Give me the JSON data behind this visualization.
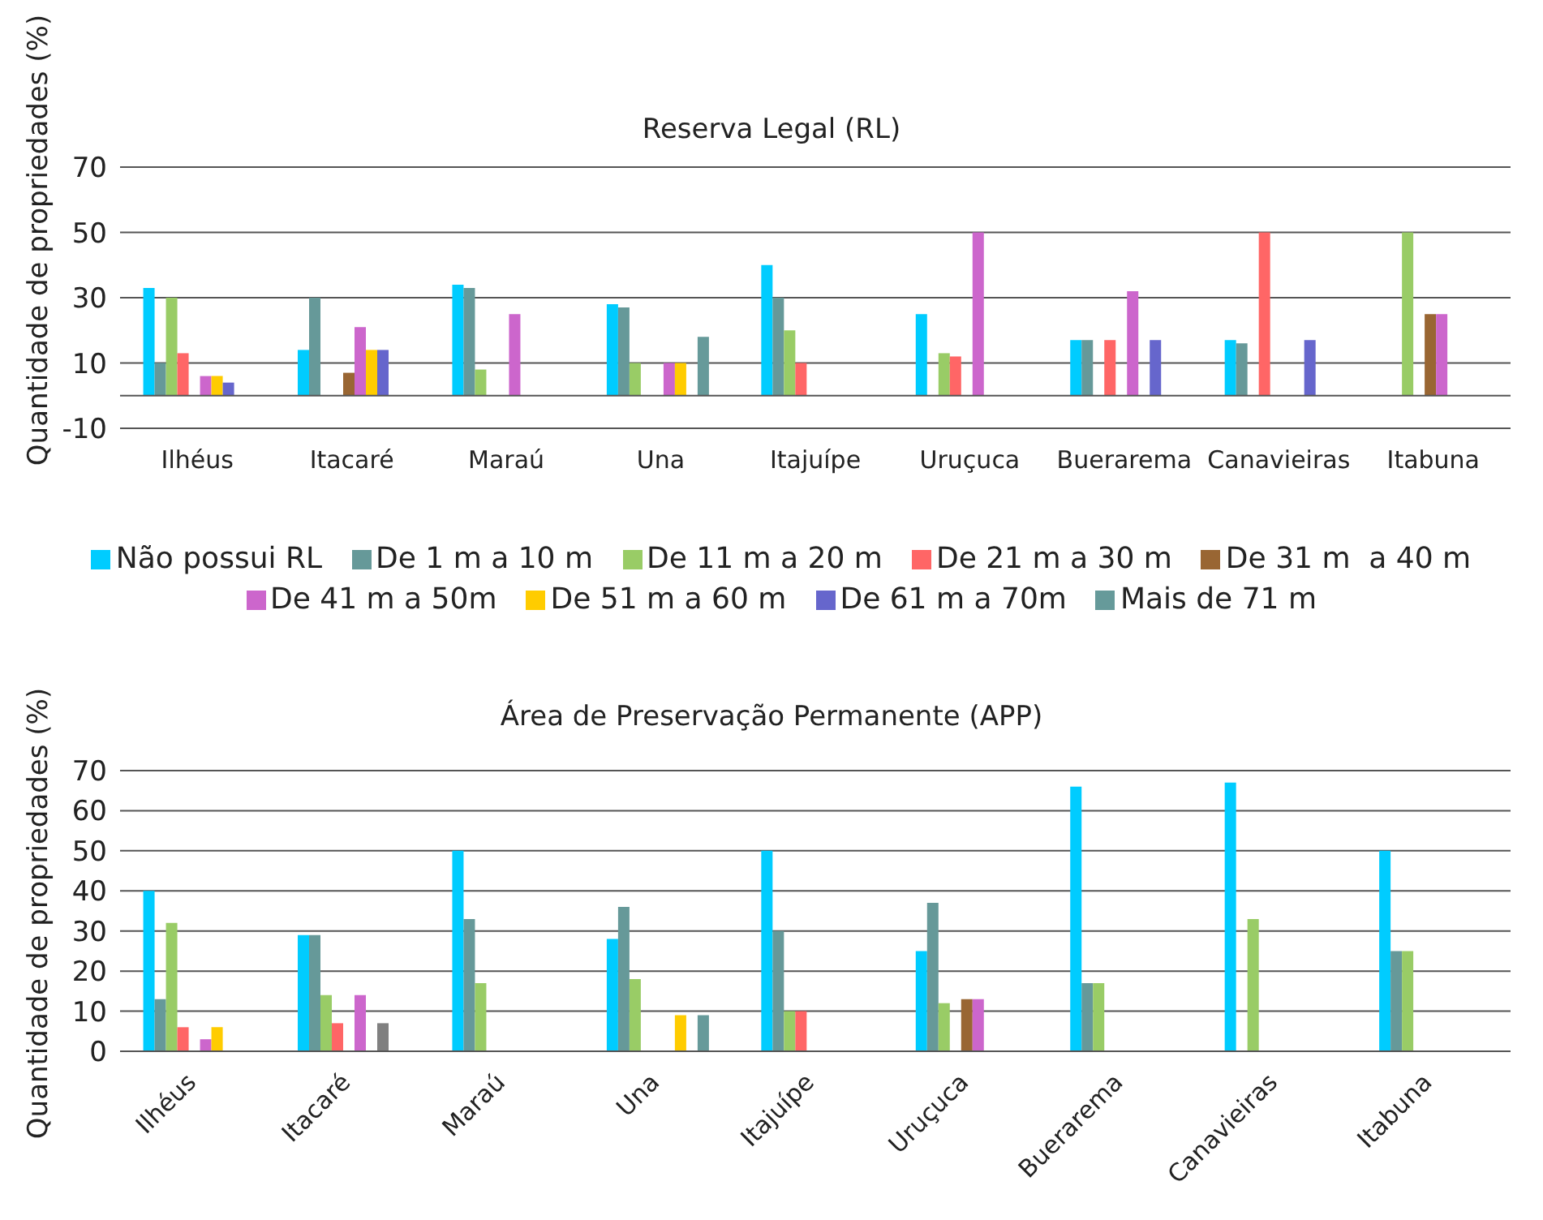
{
  "chart_data": [
    {
      "type": "bar",
      "title": "Reserva Legal (RL)",
      "ylabel": "Quantidade de propriedades (%)",
      "categories": [
        "Ilhéus",
        "Itacaré",
        "Maraú",
        "Una",
        "Itajuípe",
        "Uruçuca",
        "Buerarema",
        "Canavieiras",
        "Itabuna"
      ],
      "ylim": [
        -10,
        70
      ],
      "yticks": [
        -10,
        10,
        30,
        50,
        70
      ],
      "grid": "y",
      "legend": "bottom",
      "series": [
        {
          "name": "Não possui RL",
          "color": "#00ccff",
          "values": [
            33,
            14,
            34,
            28,
            40,
            25,
            17,
            17,
            null
          ]
        },
        {
          "name": "De 1 m a 10 m",
          "color": "#669999",
          "values": [
            10,
            30,
            33,
            27,
            30,
            null,
            17,
            16,
            null
          ]
        },
        {
          "name": "De 11 m a 20 m",
          "color": "#99cc66",
          "values": [
            30,
            null,
            8,
            10,
            20,
            13,
            null,
            null,
            50
          ]
        },
        {
          "name": "De 21 m a 30 m",
          "color": "#ff6666",
          "values": [
            13,
            null,
            null,
            null,
            10,
            12,
            17,
            50,
            null
          ]
        },
        {
          "name": "De 31 m  a 40 m",
          "color": "#996633",
          "values": [
            null,
            7,
            null,
            null,
            null,
            null,
            null,
            null,
            25
          ]
        },
        {
          "name": "De 41 m a 50m",
          "color": "#cc66cc",
          "values": [
            6,
            21,
            25,
            10,
            null,
            50,
            32,
            null,
            25
          ]
        },
        {
          "name": "De 51 m a 60 m",
          "color": "#ffcc00",
          "values": [
            6,
            14,
            null,
            10,
            null,
            null,
            null,
            null,
            null
          ]
        },
        {
          "name": "De 61 m a 70m",
          "color": "#6666cc",
          "values": [
            4,
            14,
            null,
            null,
            null,
            null,
            17,
            17,
            null
          ]
        },
        {
          "name": "Mais de 71 m",
          "color": "#669a9a",
          "values": [
            null,
            null,
            null,
            18,
            null,
            null,
            null,
            null,
            null
          ]
        }
      ]
    },
    {
      "type": "bar",
      "title": "Área de Preservação Permanente (APP)",
      "ylabel": "Quantidade de propriedades (%)",
      "categories": [
        "Ilhéus",
        "Itacaré",
        "Maraú",
        "Una",
        "Itajuípe",
        "Uruçuca",
        "Buerarema",
        "Canavieiras",
        "Itabuna"
      ],
      "ylim": [
        0,
        70
      ],
      "yticks": [
        0,
        10,
        20,
        30,
        40,
        50,
        60,
        70
      ],
      "grid": "y",
      "legend": false,
      "series": [
        {
          "color": "#00ccff",
          "values": [
            40,
            29,
            50,
            28,
            50,
            25,
            66,
            67,
            50
          ]
        },
        {
          "color": "#669999",
          "values": [
            13,
            29,
            33,
            36,
            30,
            37,
            17,
            null,
            25
          ]
        },
        {
          "color": "#99cc66",
          "values": [
            32,
            14,
            17,
            18,
            10,
            12,
            17,
            33,
            25
          ]
        },
        {
          "color": "#ff6666",
          "values": [
            6,
            7,
            null,
            null,
            10,
            null,
            null,
            null,
            null
          ]
        },
        {
          "color": "#996633",
          "values": [
            null,
            null,
            null,
            null,
            null,
            13,
            null,
            null,
            null
          ]
        },
        {
          "color": "#cc66cc",
          "values": [
            3,
            14,
            null,
            null,
            null,
            13,
            null,
            null,
            null
          ]
        },
        {
          "color": "#ffcc00",
          "values": [
            6,
            null,
            null,
            9,
            null,
            null,
            null,
            null,
            null
          ]
        },
        {
          "color": "#6666cc",
          "colors": [
            "#6666cc",
            "#808080",
            "#6666cc",
            "#6666cc",
            "#6666cc",
            "#6666cc",
            "#6666cc",
            "#6666cc",
            "#6666cc"
          ],
          "values": [
            null,
            7,
            null,
            null,
            null,
            null,
            null,
            null,
            null
          ]
        },
        {
          "color": "#669a9a",
          "values": [
            null,
            null,
            null,
            9,
            null,
            null,
            null,
            null,
            null
          ]
        }
      ]
    }
  ]
}
